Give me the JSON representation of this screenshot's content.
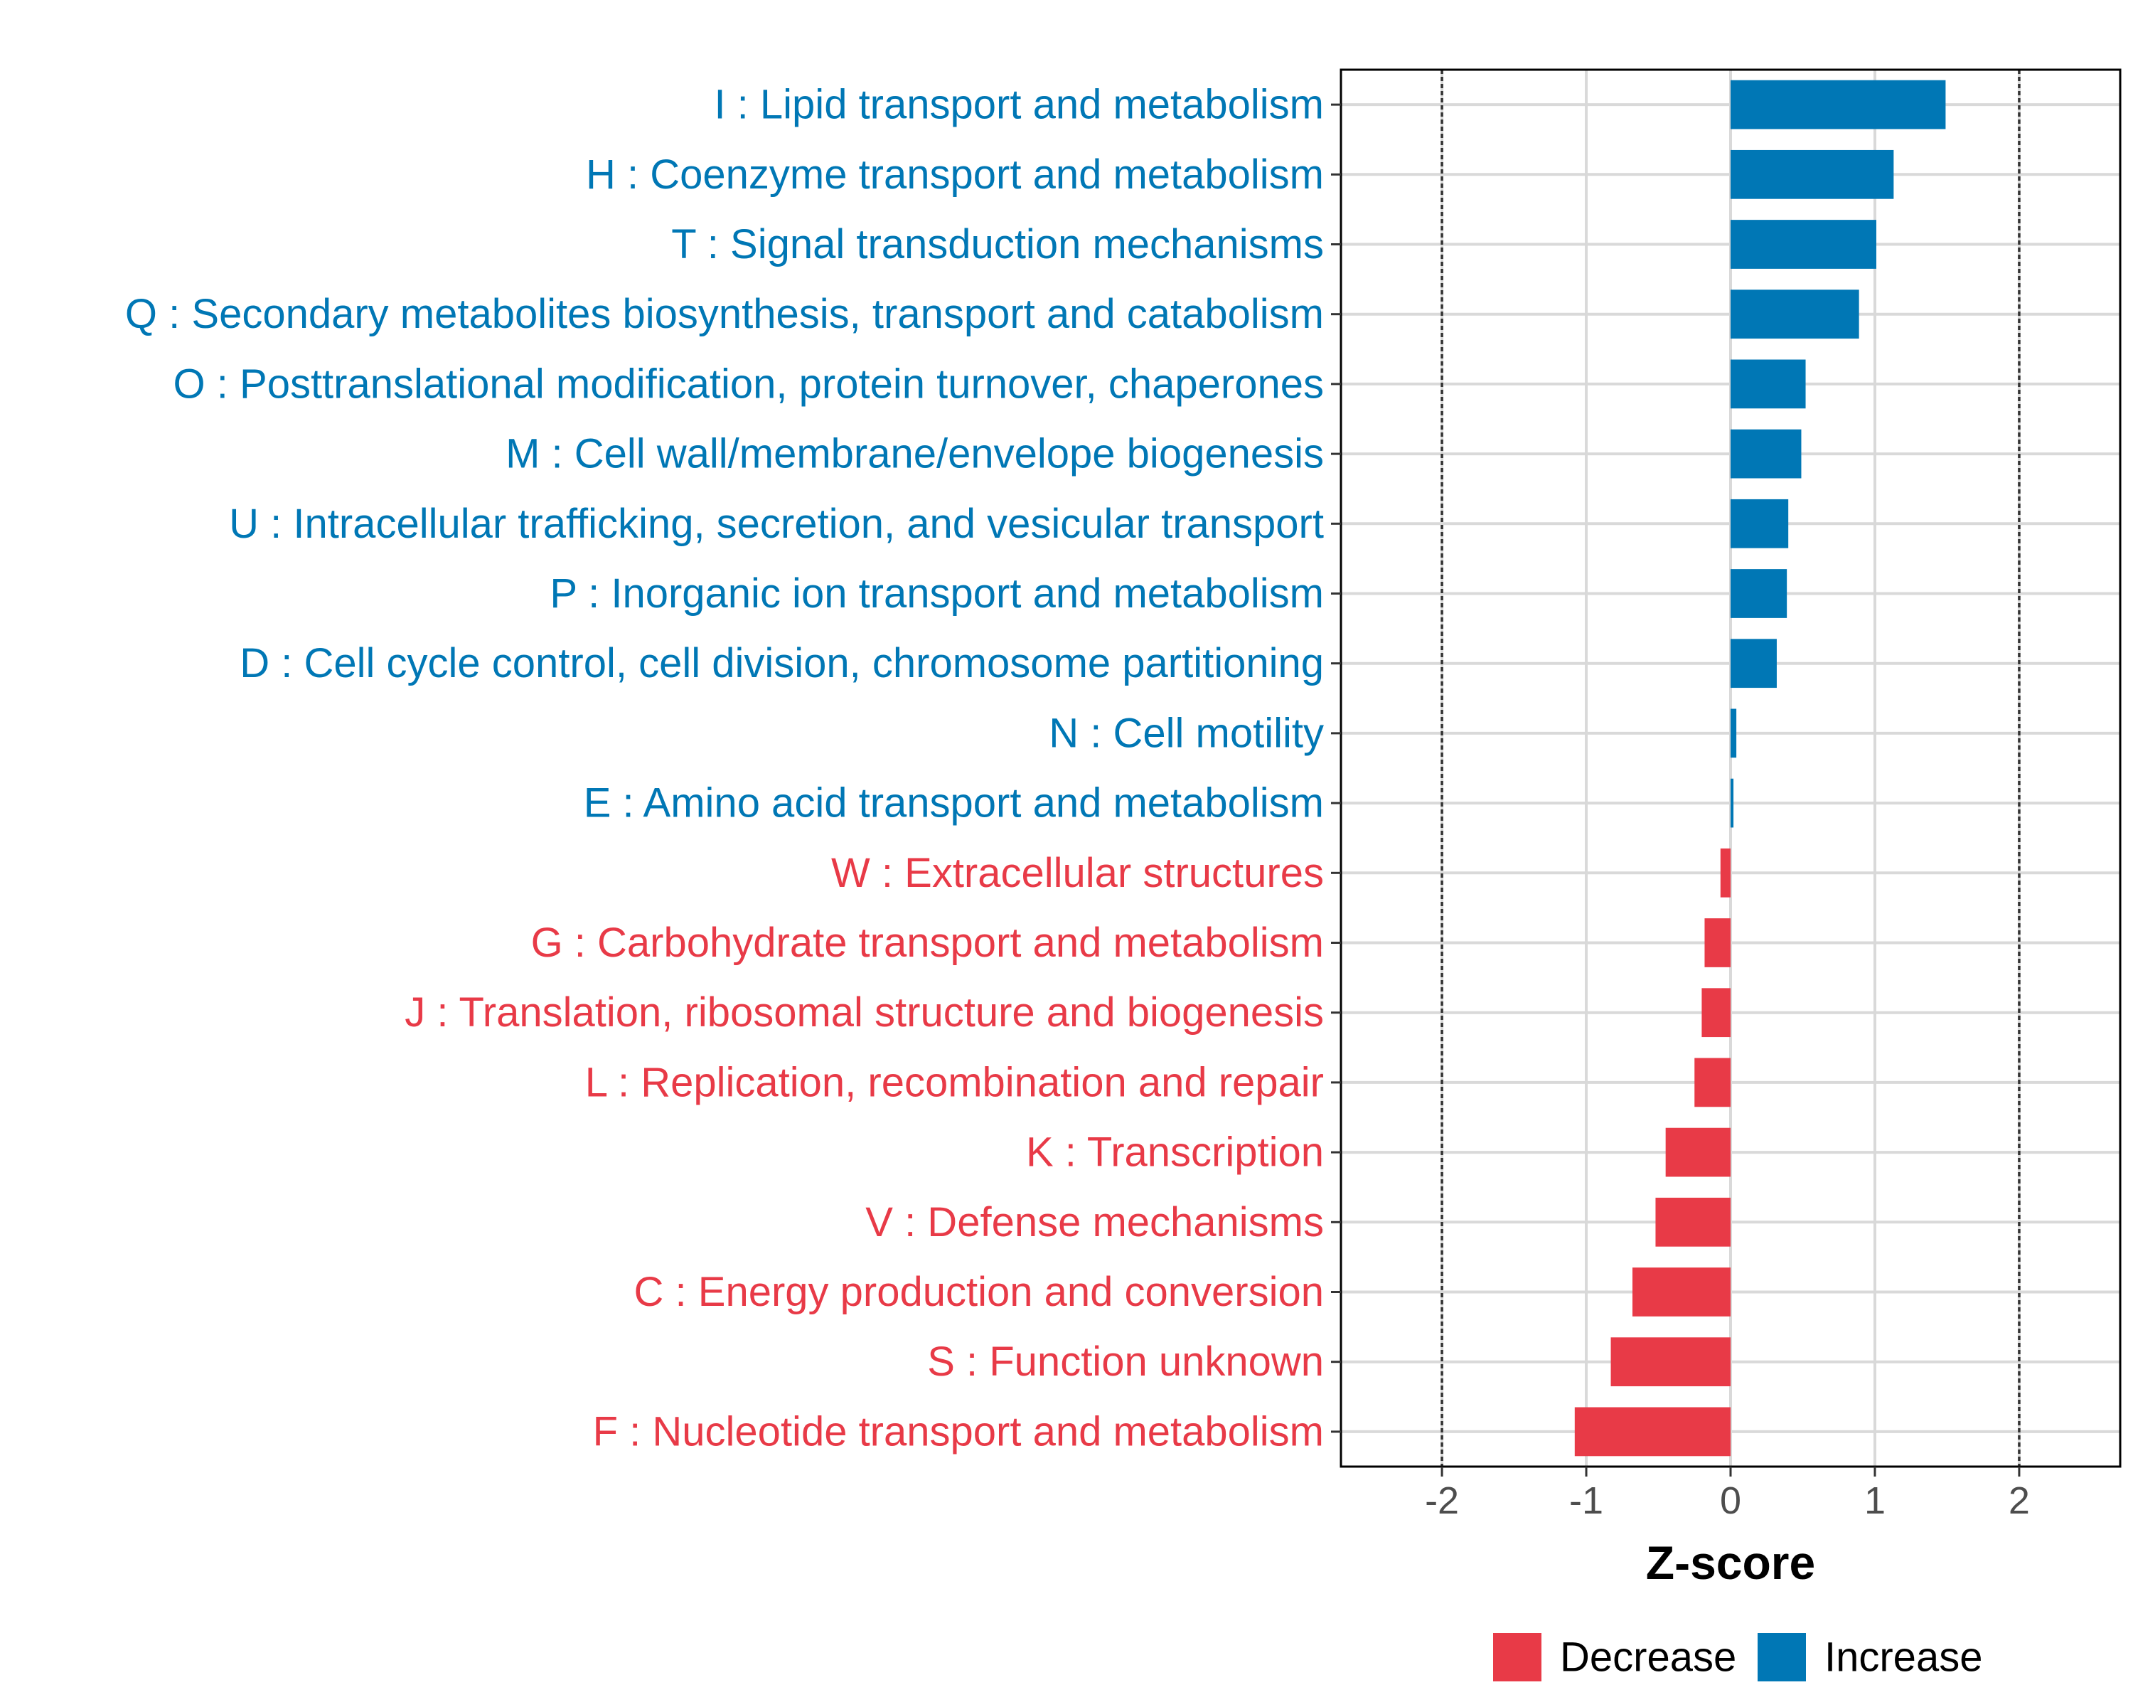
{
  "chart_data": {
    "type": "bar",
    "orientation": "horizontal",
    "title": "",
    "xlabel": "Z-score",
    "ylabel": "",
    "xlim": [
      -2.7,
      2.7
    ],
    "x_ticks": [
      -2,
      -1,
      0,
      1,
      2
    ],
    "x_tick_labels": [
      "-2",
      "-1",
      "0",
      "1",
      "2"
    ],
    "reference_lines": [
      -2,
      2
    ],
    "grid": true,
    "legend_position": "bottom-right",
    "categories": [
      "I : Lipid transport and metabolism",
      "H : Coenzyme transport and metabolism",
      "T : Signal transduction mechanisms",
      "Q : Secondary metabolites biosynthesis, transport and catabolism",
      "O : Posttranslational modification, protein turnover, chaperones",
      "M : Cell wall/membrane/envelope biogenesis",
      "U : Intracellular trafficking, secretion, and vesicular transport",
      "P : Inorganic ion transport and metabolism",
      "D : Cell cycle control, cell division, chromosome partitioning",
      "N : Cell motility",
      "E : Amino acid transport and metabolism",
      "W : Extracellular structures",
      "G : Carbohydrate transport and metabolism",
      "J : Translation, ribosomal structure and biogenesis",
      "L : Replication, recombination and repair",
      "K : Transcription",
      "V : Defense mechanisms",
      "C : Energy production and conversion",
      "S : Function unknown",
      "F : Nucleotide transport and metabolism"
    ],
    "values": [
      1.49,
      1.13,
      1.01,
      0.89,
      0.52,
      0.49,
      0.4,
      0.39,
      0.32,
      0.04,
      0.02,
      -0.07,
      -0.18,
      -0.2,
      -0.25,
      -0.45,
      -0.52,
      -0.68,
      -0.83,
      -1.08
    ],
    "groups": [
      "Increase",
      "Increase",
      "Increase",
      "Increase",
      "Increase",
      "Increase",
      "Increase",
      "Increase",
      "Increase",
      "Increase",
      "Increase",
      "Decrease",
      "Decrease",
      "Decrease",
      "Decrease",
      "Decrease",
      "Decrease",
      "Decrease",
      "Decrease",
      "Decrease"
    ],
    "legend": [
      {
        "name": "Decrease",
        "color": "#E83A47"
      },
      {
        "name": "Increase",
        "color": "#0077B5"
      }
    ]
  }
}
